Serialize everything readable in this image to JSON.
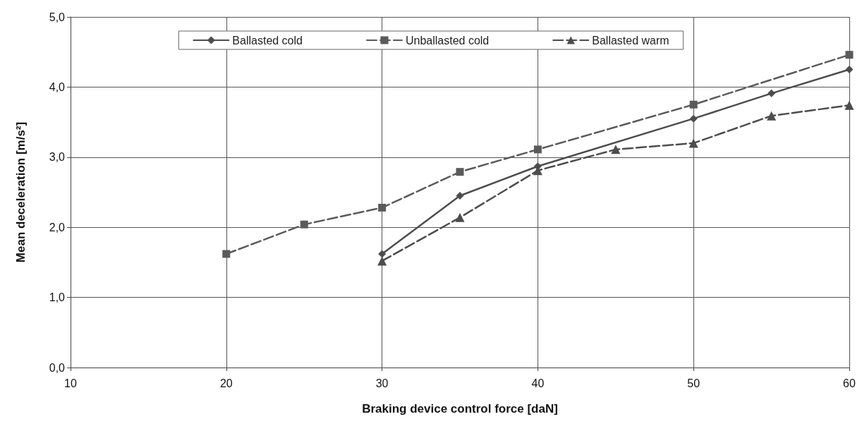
{
  "chart_data": {
    "type": "line",
    "xlabel": "Braking device control force [daN]",
    "ylabel": "Mean deceleration [m/s²]",
    "xlim": [
      10,
      60
    ],
    "xticks": [
      10,
      20,
      30,
      40,
      50,
      60
    ],
    "ylim": [
      0,
      5
    ],
    "yticks": [
      {
        "value": 0,
        "label": "0,0"
      },
      {
        "value": 1,
        "label": "1,0"
      },
      {
        "value": 2,
        "label": "2,0"
      },
      {
        "value": 3,
        "label": "3,0"
      },
      {
        "value": 4,
        "label": "4,0"
      },
      {
        "value": 5,
        "label": "5,0"
      }
    ],
    "grid": true,
    "legend": "top",
    "series": [
      {
        "name": "Ballasted cold",
        "color": "#4d4d4d",
        "marker": "diamond",
        "line_style": "solid",
        "x": [
          30,
          35,
          40,
          50,
          55,
          60
        ],
        "values": [
          1.62,
          2.45,
          2.87,
          3.55,
          3.91,
          4.25
        ]
      },
      {
        "name": "Unballasted cold",
        "color": "#5a5a5a",
        "marker": "square",
        "line_style": "dashed",
        "x": [
          20,
          25,
          30,
          35,
          40,
          50,
          60
        ],
        "values": [
          1.62,
          2.04,
          2.28,
          2.79,
          3.11,
          3.75,
          4.46
        ]
      },
      {
        "name": "Ballasted warm",
        "color": "#4d4d4d",
        "marker": "triangle",
        "line_style": "dashed",
        "x": [
          30,
          35,
          40,
          45,
          50,
          55,
          60
        ],
        "values": [
          1.52,
          2.14,
          2.81,
          3.11,
          3.2,
          3.59,
          3.74
        ]
      }
    ]
  }
}
